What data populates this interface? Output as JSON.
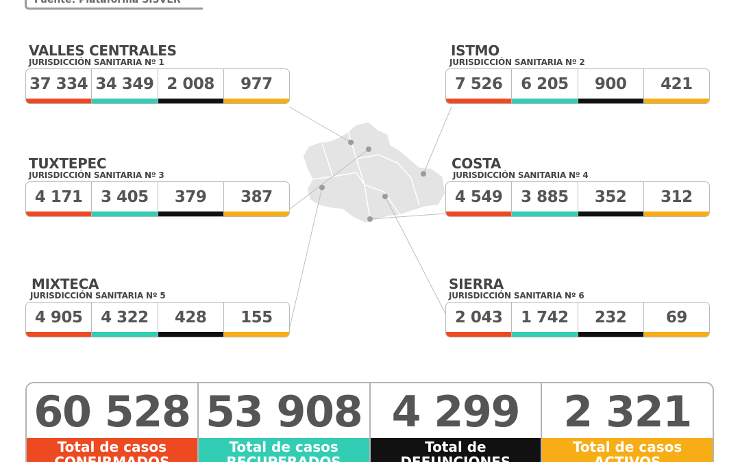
{
  "source": "Fuente: Plataforma SISVER",
  "colors": {
    "confirmed": "#ee4a22",
    "recovered": "#33cdb4",
    "deaths": "#111111",
    "active": "#f7ad16"
  },
  "regions": [
    {
      "name": "VALLES CENTRALES",
      "sub": "JURISDICCIÓN SANITARIA Nº 1",
      "values": [
        "37 334",
        "34 349",
        "2 008",
        "977"
      ]
    },
    {
      "name": "TUXTEPEC",
      "sub": "JURISDICCIÓN SANITARIA Nº 3",
      "values": [
        "4 171",
        "3 405",
        "379",
        "387"
      ]
    },
    {
      "name": "MIXTECA",
      "sub": "JURISDICCIÓN SANITARIA Nº 5",
      "values": [
        "4 905",
        "4 322",
        "428",
        "155"
      ]
    },
    {
      "name": "ISTMO",
      "sub": "JURISDICCIÓN SANITARIA Nº 2",
      "values": [
        "7 526",
        "6 205",
        "900",
        "421"
      ]
    },
    {
      "name": "COSTA",
      "sub": "JURISDICCIÓN SANITARIA Nº 4",
      "values": [
        "4 549",
        "3 885",
        "352",
        "312"
      ]
    },
    {
      "name": "SIERRA",
      "sub": "JURISDICCIÓN SANITARIA Nº 6",
      "values": [
        "2 043",
        "1 742",
        "232",
        "69"
      ]
    }
  ],
  "totals": [
    {
      "value": "60 528",
      "label1": "Total de casos",
      "label2": "CONFIRMADOS"
    },
    {
      "value": "53 908",
      "label1": "Total de casos",
      "label2": "RECUPERADOS"
    },
    {
      "value": "4 299",
      "label1": "Total de",
      "label2": "DEFUNCIONES"
    },
    {
      "value": "2 321",
      "label1": "Total de casos",
      "label2": "ACTIVOS"
    }
  ]
}
